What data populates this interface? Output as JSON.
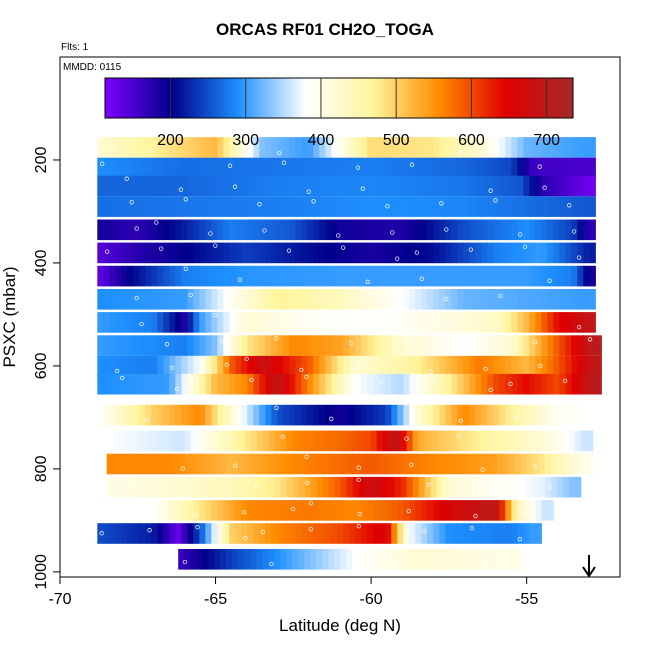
{
  "header": {
    "title": "ORCAS RF01 CH2O_TOGA",
    "flights_label": "Flts: 1",
    "date_label": "MMDD: 0115"
  },
  "chart_data": {
    "type": "heatmap",
    "title": "ORCAS RF01 CH2O_TOGA",
    "xlabel": "Latitude (deg N)",
    "ylabel": "PSXC (mbar)",
    "xlim": [
      -70,
      -52
    ],
    "ylim": [
      1010,
      0
    ],
    "x_ticks": [
      -70,
      -65,
      -60,
      -55
    ],
    "y_ticks": [
      200,
      400,
      600,
      800,
      1000
    ],
    "colorbar": {
      "ticks": [
        200,
        300,
        400,
        500,
        600,
        700
      ],
      "range": [
        113,
        735
      ],
      "colors": [
        "#7f00ff",
        "#00008b",
        "#1e90ff",
        "#ffffff",
        "#fff59d",
        "#ff8c00",
        "#e00000",
        "#a52a2a"
      ]
    },
    "grid": false,
    "bands": [
      {
        "p": 175,
        "values": [
          {
            "lat": -68.8,
            "v": 420
          },
          {
            "lat": -67,
            "v": 470
          },
          {
            "lat": -65,
            "v": 520
          },
          {
            "lat": -63.5,
            "v": 330
          },
          {
            "lat": -62,
            "v": 300
          },
          {
            "lat": -60,
            "v": 490
          },
          {
            "lat": -58,
            "v": 480
          },
          {
            "lat": -56.5,
            "v": 420
          },
          {
            "lat": -55,
            "v": 320
          },
          {
            "lat": -53,
            "v": 300
          }
        ]
      },
      {
        "p": 215,
        "values": [
          {
            "lat": -68.8,
            "v": 290
          },
          {
            "lat": -66,
            "v": 270
          },
          {
            "lat": -63,
            "v": 275
          },
          {
            "lat": -60,
            "v": 280
          },
          {
            "lat": -57,
            "v": 265
          },
          {
            "lat": -55.5,
            "v": 245
          },
          {
            "lat": -54.8,
            "v": 160
          },
          {
            "lat": -53,
            "v": 150
          }
        ]
      },
      {
        "p": 250,
        "values": [
          {
            "lat": -68.8,
            "v": 265
          },
          {
            "lat": -66,
            "v": 265
          },
          {
            "lat": -63,
            "v": 280
          },
          {
            "lat": -60,
            "v": 285
          },
          {
            "lat": -57,
            "v": 275
          },
          {
            "lat": -55.2,
            "v": 255
          },
          {
            "lat": -54.5,
            "v": 175
          },
          {
            "lat": -53,
            "v": 125
          }
        ]
      },
      {
        "p": 290,
        "values": [
          {
            "lat": -68.8,
            "v": 270
          },
          {
            "lat": -66,
            "v": 275
          },
          {
            "lat": -63,
            "v": 280
          },
          {
            "lat": -60,
            "v": 290
          },
          {
            "lat": -57,
            "v": 285
          },
          {
            "lat": -55,
            "v": 270
          },
          {
            "lat": -53,
            "v": 255
          }
        ]
      },
      {
        "p": 335,
        "values": [
          {
            "lat": -68.8,
            "v": 190
          },
          {
            "lat": -67.5,
            "v": 170
          },
          {
            "lat": -66,
            "v": 220
          },
          {
            "lat": -64.5,
            "v": 280
          },
          {
            "lat": -62.5,
            "v": 255
          },
          {
            "lat": -61,
            "v": 190
          },
          {
            "lat": -59,
            "v": 180
          },
          {
            "lat": -57,
            "v": 250
          },
          {
            "lat": -55,
            "v": 290
          },
          {
            "lat": -53.5,
            "v": 240
          },
          {
            "lat": -53,
            "v": 170
          }
        ]
      },
      {
        "p": 380,
        "values": [
          {
            "lat": -68.8,
            "v": 140
          },
          {
            "lat": -67.5,
            "v": 175
          },
          {
            "lat": -66,
            "v": 200
          },
          {
            "lat": -64,
            "v": 240
          },
          {
            "lat": -62,
            "v": 210
          },
          {
            "lat": -60,
            "v": 185
          },
          {
            "lat": -58,
            "v": 210
          },
          {
            "lat": -56,
            "v": 280
          },
          {
            "lat": -54.5,
            "v": 300
          },
          {
            "lat": -53,
            "v": 220
          }
        ]
      },
      {
        "p": 425,
        "values": [
          {
            "lat": -68.8,
            "v": 130
          },
          {
            "lat": -67.8,
            "v": 200
          },
          {
            "lat": -66,
            "v": 280
          },
          {
            "lat": -64,
            "v": 295
          },
          {
            "lat": -61,
            "v": 300
          },
          {
            "lat": -58,
            "v": 300
          },
          {
            "lat": -55,
            "v": 300
          },
          {
            "lat": -53.5,
            "v": 280
          },
          {
            "lat": -53,
            "v": 190
          }
        ]
      },
      {
        "p": 470,
        "values": [
          {
            "lat": -68.8,
            "v": 290
          },
          {
            "lat": -66,
            "v": 300
          },
          {
            "lat": -64.5,
            "v": 390
          },
          {
            "lat": -63,
            "v": 470
          },
          {
            "lat": -61,
            "v": 440
          },
          {
            "lat": -59,
            "v": 380
          },
          {
            "lat": -57,
            "v": 320
          },
          {
            "lat": -55,
            "v": 310
          },
          {
            "lat": -53,
            "v": 300
          }
        ]
      },
      {
        "p": 515,
        "values": [
          {
            "lat": -68.8,
            "v": 300
          },
          {
            "lat": -67,
            "v": 280
          },
          {
            "lat": -66,
            "v": 180
          },
          {
            "lat": -65.5,
            "v": 300
          },
          {
            "lat": -64,
            "v": 420
          },
          {
            "lat": -62,
            "v": 390
          },
          {
            "lat": -60,
            "v": 380
          },
          {
            "lat": -58,
            "v": 400
          },
          {
            "lat": -56,
            "v": 430
          },
          {
            "lat": -55,
            "v": 520
          },
          {
            "lat": -54,
            "v": 640
          },
          {
            "lat": -53,
            "v": 690
          }
        ]
      },
      {
        "p": 560,
        "values": [
          {
            "lat": -68.8,
            "v": 300
          },
          {
            "lat": -66,
            "v": 280
          },
          {
            "lat": -65,
            "v": 330
          },
          {
            "lat": -64,
            "v": 480
          },
          {
            "lat": -62.5,
            "v": 560
          },
          {
            "lat": -61,
            "v": 540
          },
          {
            "lat": -59,
            "v": 420
          },
          {
            "lat": -57,
            "v": 380
          },
          {
            "lat": -55.5,
            "v": 420
          },
          {
            "lat": -54.5,
            "v": 540
          },
          {
            "lat": -53.5,
            "v": 640
          },
          {
            "lat": -52.8,
            "v": 710
          }
        ]
      },
      {
        "p": 600,
        "values": [
          {
            "lat": -68.8,
            "v": 290
          },
          {
            "lat": -67,
            "v": 280
          },
          {
            "lat": -65.5,
            "v": 380
          },
          {
            "lat": -64.5,
            "v": 590
          },
          {
            "lat": -63.5,
            "v": 680
          },
          {
            "lat": -62,
            "v": 590
          },
          {
            "lat": -60.5,
            "v": 420
          },
          {
            "lat": -58.5,
            "v": 470
          },
          {
            "lat": -56.5,
            "v": 570
          },
          {
            "lat": -55,
            "v": 520
          },
          {
            "lat": -54,
            "v": 590
          },
          {
            "lat": -52.8,
            "v": 700
          }
        ]
      },
      {
        "p": 635,
        "values": [
          {
            "lat": -68.8,
            "v": 290
          },
          {
            "lat": -66.5,
            "v": 300
          },
          {
            "lat": -65,
            "v": 520
          },
          {
            "lat": -64,
            "v": 560
          },
          {
            "lat": -63,
            "v": 700
          },
          {
            "lat": -62,
            "v": 560
          },
          {
            "lat": -60.5,
            "v": 380
          },
          {
            "lat": -59,
            "v": 350
          },
          {
            "lat": -57.5,
            "v": 470
          },
          {
            "lat": -56,
            "v": 600
          },
          {
            "lat": -55,
            "v": 640
          },
          {
            "lat": -54,
            "v": 600
          },
          {
            "lat": -52.8,
            "v": 710
          }
        ]
      },
      {
        "p": 695,
        "values": [
          {
            "lat": -68.8,
            "v": 380
          },
          {
            "lat": -67,
            "v": 500
          },
          {
            "lat": -65.5,
            "v": 560
          },
          {
            "lat": -64.5,
            "v": 420
          },
          {
            "lat": -63,
            "v": 250
          },
          {
            "lat": -61,
            "v": 190
          },
          {
            "lat": -59.5,
            "v": 240
          },
          {
            "lat": -58.5,
            "v": 420
          },
          {
            "lat": -57,
            "v": 560
          },
          {
            "lat": -55.5,
            "v": 470
          },
          {
            "lat": -54,
            "v": 390
          },
          {
            "lat": -52.8,
            "v": 380
          }
        ]
      },
      {
        "p": 745,
        "values": [
          {
            "lat": -68.5,
            "v": 380
          },
          {
            "lat": -66,
            "v": 360
          },
          {
            "lat": -64,
            "v": 480
          },
          {
            "lat": -62.5,
            "v": 560
          },
          {
            "lat": -61,
            "v": 580
          },
          {
            "lat": -60,
            "v": 600
          },
          {
            "lat": -59.2,
            "v": 700
          },
          {
            "lat": -58.5,
            "v": 530
          },
          {
            "lat": -56.5,
            "v": 470
          },
          {
            "lat": -54.5,
            "v": 420
          },
          {
            "lat": -53.2,
            "v": 360
          }
        ]
      },
      {
        "p": 790,
        "values": [
          {
            "lat": -68.5,
            "v": 560
          },
          {
            "lat": -66.5,
            "v": 560
          },
          {
            "lat": -64.5,
            "v": 520
          },
          {
            "lat": -62.5,
            "v": 560
          },
          {
            "lat": -60,
            "v": 590
          },
          {
            "lat": -58,
            "v": 560
          },
          {
            "lat": -56,
            "v": 540
          },
          {
            "lat": -54.5,
            "v": 480
          },
          {
            "lat": -53.2,
            "v": 400
          }
        ]
      },
      {
        "p": 835,
        "values": [
          {
            "lat": -68.5,
            "v": 400
          },
          {
            "lat": -66.5,
            "v": 420
          },
          {
            "lat": -64.5,
            "v": 440
          },
          {
            "lat": -63,
            "v": 480
          },
          {
            "lat": -61,
            "v": 590
          },
          {
            "lat": -60,
            "v": 680
          },
          {
            "lat": -59,
            "v": 620
          },
          {
            "lat": -57.5,
            "v": 420
          },
          {
            "lat": -56,
            "v": 390
          },
          {
            "lat": -54.5,
            "v": 370
          },
          {
            "lat": -53.5,
            "v": 330
          }
        ]
      },
      {
        "p": 880,
        "values": [
          {
            "lat": -68.8,
            "v": 380
          },
          {
            "lat": -67,
            "v": 380
          },
          {
            "lat": -65.5,
            "v": 480
          },
          {
            "lat": -64,
            "v": 560
          },
          {
            "lat": -62,
            "v": 570
          },
          {
            "lat": -60.5,
            "v": 560
          },
          {
            "lat": -59,
            "v": 590
          },
          {
            "lat": -57.5,
            "v": 660
          },
          {
            "lat": -56,
            "v": 700
          },
          {
            "lat": -55.3,
            "v": 440
          },
          {
            "lat": -54.5,
            "v": 360
          }
        ]
      },
      {
        "p": 925,
        "values": [
          {
            "lat": -68.8,
            "v": 250
          },
          {
            "lat": -67,
            "v": 220
          },
          {
            "lat": -66.2,
            "v": 130
          },
          {
            "lat": -65.5,
            "v": 250
          },
          {
            "lat": -64.5,
            "v": 500
          },
          {
            "lat": -63,
            "v": 560
          },
          {
            "lat": -61,
            "v": 600
          },
          {
            "lat": -59.5,
            "v": 660
          },
          {
            "lat": -58.8,
            "v": 380
          },
          {
            "lat": -57.5,
            "v": 290
          },
          {
            "lat": -55.5,
            "v": 280
          },
          {
            "lat": -54.8,
            "v": 300
          }
        ]
      },
      {
        "p": 975,
        "values": [
          {
            "lat": -66.2,
            "v": 160
          },
          {
            "lat": -64.5,
            "v": 240
          },
          {
            "lat": -62.5,
            "v": 310
          },
          {
            "lat": -60.5,
            "v": 380
          },
          {
            "lat": -58.5,
            "v": 420
          },
          {
            "lat": -57,
            "v": 410
          },
          {
            "lat": -55.5,
            "v": 400
          }
        ]
      }
    ]
  }
}
